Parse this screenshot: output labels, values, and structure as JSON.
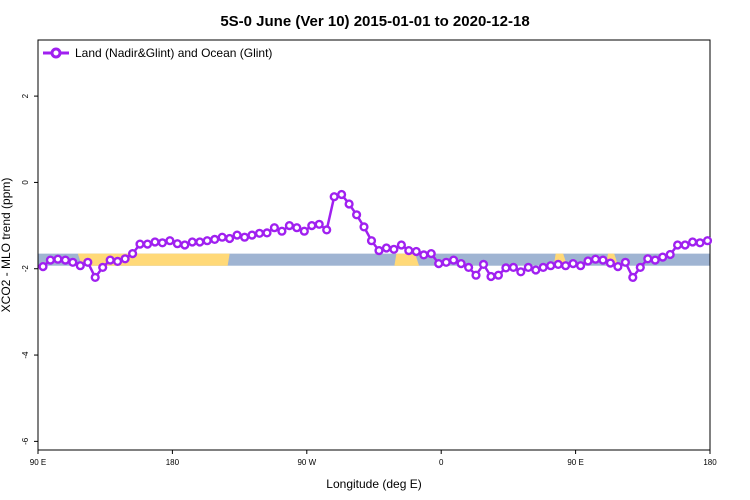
{
  "chart_data": {
    "type": "line",
    "title": "5S-0 June (Ver 10)   2015-01-01 to 2020-12-18",
    "xlabel": "Longitude (deg E)",
    "ylabel": "XCO2 - MLO trend (ppm)",
    "xlim": [
      -90,
      180
    ],
    "ylim": [
      -6.2,
      3.3
    ],
    "x_tick_positions": [
      -90,
      -36,
      18,
      72,
      126,
      180
    ],
    "x_tick_labels": [
      "90 E",
      "180",
      "90 W",
      "0",
      "90 E",
      "180"
    ],
    "y_ticks": [
      2,
      0,
      -2,
      -4,
      -6
    ],
    "y_tick_labels": [
      "2",
      "0",
      "-2",
      "-4",
      "-6"
    ],
    "grid": false,
    "legend_position": "top-left",
    "series": [
      {
        "name": "Land (Nadir&Glint) and Ocean (Glint)",
        "color": "#a020f0",
        "x": [
          -88,
          -85,
          -82,
          -79,
          -76,
          -73,
          -70,
          -67,
          -64,
          -61,
          -58,
          -55,
          -52,
          -49,
          -46,
          -43,
          -40,
          -37,
          -34,
          -31,
          -28,
          -25,
          -22,
          -19,
          -16,
          -13,
          -10,
          -7,
          -4,
          -1,
          2,
          5,
          8,
          11,
          14,
          17,
          20,
          23,
          26,
          29,
          32,
          35,
          38,
          41,
          44,
          47,
          50,
          53,
          56,
          59,
          62,
          65,
          68,
          71,
          74,
          77,
          80,
          83,
          86,
          89,
          92,
          95,
          98,
          101,
          104,
          107,
          110,
          113,
          116,
          119,
          122,
          125,
          128,
          131,
          134,
          137,
          140,
          143,
          146,
          149,
          152,
          155,
          158,
          161,
          164,
          167,
          170,
          173,
          176,
          179
        ],
        "values": [
          -1.95,
          -1.8,
          -1.78,
          -1.8,
          -1.85,
          -1.93,
          -1.85,
          -2.2,
          -1.97,
          -1.8,
          -1.83,
          -1.77,
          -1.65,
          -1.43,
          -1.43,
          -1.38,
          -1.4,
          -1.35,
          -1.42,
          -1.45,
          -1.38,
          -1.38,
          -1.35,
          -1.32,
          -1.27,
          -1.3,
          -1.22,
          -1.27,
          -1.22,
          -1.18,
          -1.17,
          -1.05,
          -1.13,
          -1.0,
          -1.05,
          -1.13,
          -1.0,
          -0.97,
          -1.1,
          -0.33,
          -0.28,
          -0.5,
          -0.75,
          -1.03,
          -1.35,
          -1.58,
          -1.52,
          -1.55,
          -1.45,
          -1.58,
          -1.6,
          -1.68,
          -1.65,
          -1.88,
          -1.85,
          -1.8,
          -1.88,
          -1.97,
          -2.15,
          -1.9,
          -2.18,
          -2.15,
          -1.98,
          -1.97,
          -2.07,
          -1.97,
          -2.03,
          -1.97,
          -1.93,
          -1.9,
          -1.93,
          -1.88,
          -1.93,
          -1.82,
          -1.78,
          -1.8,
          -1.87,
          -1.95,
          -1.85,
          -2.2,
          -1.97,
          -1.77,
          -1.8,
          -1.73,
          -1.67,
          -1.45,
          -1.45,
          -1.38,
          -1.4,
          -1.35
        ]
      }
    ],
    "background_band": {
      "y_range": [
        -1.93,
        -1.65
      ],
      "colors": {
        "ocean": "#9fb4d2",
        "land": "#ffd978"
      },
      "land_segments": [
        [
          -71,
          -73.5
        ],
        [
          -13,
          -74
        ],
        [
          54,
          61.5
        ],
        [
          118,
          121
        ],
        [
          139,
          141.5
        ]
      ]
    }
  }
}
